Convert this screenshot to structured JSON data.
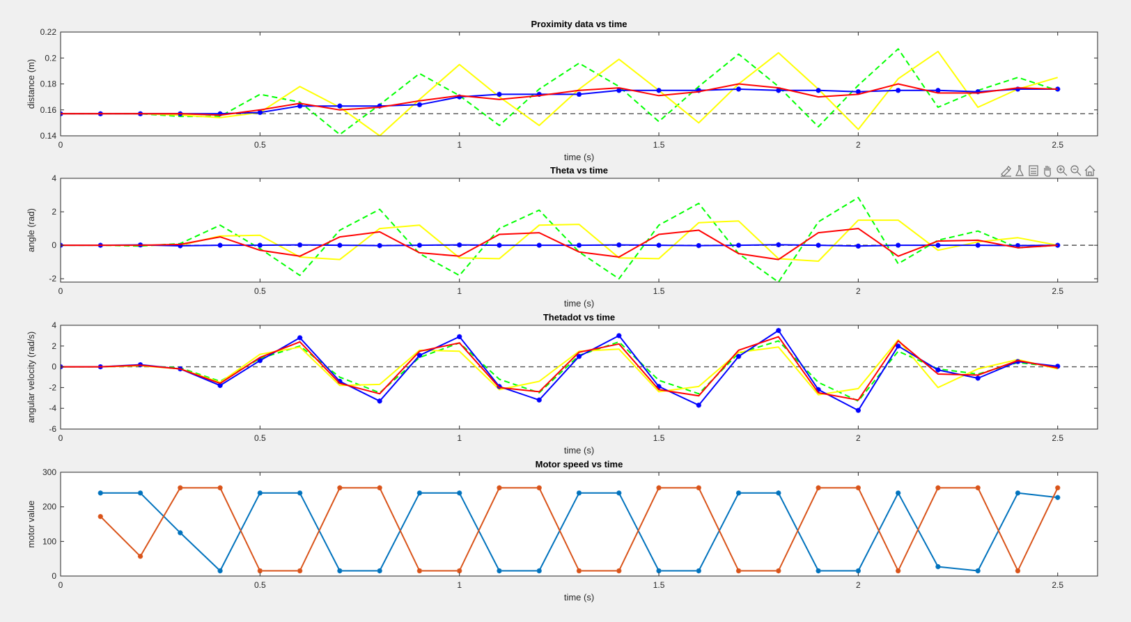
{
  "window": {
    "toolbar_icons": [
      "brush-icon",
      "flask-icon",
      "legend-icon",
      "pan-hand-icon",
      "zoom-in-icon",
      "zoom-out-icon",
      "home-icon"
    ]
  },
  "chart_data": [
    {
      "type": "line",
      "title": "Proximity data vs time",
      "xlabel": "time (s)",
      "ylabel": "distance (m)",
      "xlim": [
        0,
        2.6
      ],
      "ylim": [
        0.14,
        0.22
      ],
      "xticks": [
        0,
        0.5,
        1,
        1.5,
        2,
        2.5
      ],
      "xtick_labels": [
        "0",
        "0.5",
        "1",
        "1.5",
        "2",
        "2.5"
      ],
      "yticks": [
        0.14,
        0.16,
        0.18,
        0.2,
        0.22
      ],
      "ytick_labels": [
        "0.14",
        "0.16",
        "0.18",
        "0.2",
        "0.22"
      ],
      "reference_line": 0.157,
      "series": [
        {
          "color": "#00ff00",
          "dash": true,
          "marker": "",
          "x": [
            0,
            0.1,
            0.2,
            0.3,
            0.4,
            0.5,
            0.6,
            0.7,
            0.8,
            0.9,
            1.0,
            1.1,
            1.2,
            1.3,
            1.4,
            1.5,
            1.6,
            1.7,
            1.8,
            1.9,
            2.0,
            2.1,
            2.2,
            2.3,
            2.4,
            2.5
          ],
          "y": [
            0.157,
            0.157,
            0.157,
            0.155,
            0.155,
            0.172,
            0.166,
            0.141,
            0.164,
            0.188,
            0.171,
            0.148,
            0.176,
            0.196,
            0.178,
            0.151,
            0.178,
            0.203,
            0.178,
            0.147,
            0.179,
            0.207,
            0.162,
            0.175,
            0.185,
            0.175
          ]
        },
        {
          "color": "#ffff00",
          "dash": false,
          "marker": "",
          "x": [
            0,
            0.1,
            0.2,
            0.3,
            0.4,
            0.5,
            0.6,
            0.7,
            0.8,
            0.9,
            1.0,
            1.1,
            1.2,
            1.3,
            1.4,
            1.5,
            1.6,
            1.7,
            1.8,
            1.9,
            2.0,
            2.1,
            2.2,
            2.3,
            2.4,
            2.5
          ],
          "y": [
            0.157,
            0.157,
            0.157,
            0.156,
            0.154,
            0.158,
            0.178,
            0.162,
            0.14,
            0.168,
            0.195,
            0.17,
            0.148,
            0.176,
            0.199,
            0.175,
            0.15,
            0.18,
            0.204,
            0.176,
            0.145,
            0.184,
            0.205,
            0.162,
            0.176,
            0.185
          ]
        },
        {
          "color": "#0000ff",
          "dash": false,
          "marker": "*",
          "x": [
            0,
            0.1,
            0.2,
            0.3,
            0.4,
            0.5,
            0.6,
            0.7,
            0.8,
            0.9,
            1.0,
            1.1,
            1.2,
            1.3,
            1.4,
            1.5,
            1.6,
            1.7,
            1.8,
            1.9,
            2.0,
            2.1,
            2.2,
            2.3,
            2.4,
            2.5
          ],
          "y": [
            0.157,
            0.157,
            0.157,
            0.157,
            0.157,
            0.158,
            0.163,
            0.163,
            0.163,
            0.164,
            0.17,
            0.172,
            0.172,
            0.172,
            0.175,
            0.175,
            0.175,
            0.176,
            0.175,
            0.175,
            0.174,
            0.175,
            0.175,
            0.174,
            0.176,
            0.176
          ]
        },
        {
          "color": "#ff0000",
          "dash": false,
          "marker": "",
          "x": [
            0,
            0.1,
            0.2,
            0.3,
            0.4,
            0.5,
            0.6,
            0.7,
            0.8,
            0.9,
            1.0,
            1.1,
            1.2,
            1.3,
            1.4,
            1.5,
            1.6,
            1.7,
            1.8,
            1.9,
            2.0,
            2.1,
            2.2,
            2.3,
            2.4,
            2.5
          ],
          "y": [
            0.157,
            0.157,
            0.157,
            0.157,
            0.156,
            0.16,
            0.165,
            0.16,
            0.162,
            0.167,
            0.171,
            0.168,
            0.171,
            0.175,
            0.177,
            0.171,
            0.174,
            0.18,
            0.177,
            0.17,
            0.172,
            0.18,
            0.173,
            0.173,
            0.177,
            0.176
          ]
        }
      ]
    },
    {
      "type": "line",
      "title": "Theta vs time",
      "xlabel": "time (s)",
      "ylabel": "angle (rad)",
      "xlim": [
        0,
        2.6
      ],
      "ylim": [
        -2.2,
        4
      ],
      "xticks": [
        0,
        0.5,
        1,
        1.5,
        2,
        2.5
      ],
      "xtick_labels": [
        "0",
        "0.5",
        "1",
        "1.5",
        "2",
        "2.5"
      ],
      "yticks": [
        -2,
        0,
        2,
        4
      ],
      "ytick_labels": [
        "-2",
        "0",
        "2",
        "4"
      ],
      "reference_line": 0,
      "series": [
        {
          "color": "#00ff00",
          "dash": true,
          "marker": "",
          "x": [
            0,
            0.1,
            0.2,
            0.3,
            0.4,
            0.5,
            0.6,
            0.7,
            0.8,
            0.9,
            1.0,
            1.1,
            1.2,
            1.3,
            1.4,
            1.5,
            1.6,
            1.7,
            1.8,
            1.9,
            2.0,
            2.1,
            2.2,
            2.3,
            2.4,
            2.5
          ],
          "y": [
            0,
            0,
            -0.05,
            0.1,
            1.2,
            -0.2,
            -1.8,
            0.9,
            2.15,
            -0.5,
            -1.8,
            1.0,
            2.1,
            -0.4,
            -2.0,
            1.2,
            2.5,
            -0.5,
            -2.2,
            1.4,
            2.85,
            -1.1,
            0.3,
            0.85,
            -0.15,
            0
          ]
        },
        {
          "color": "#ffff00",
          "dash": false,
          "marker": "",
          "x": [
            0,
            0.1,
            0.2,
            0.3,
            0.4,
            0.5,
            0.6,
            0.7,
            0.8,
            0.9,
            1.0,
            1.1,
            1.2,
            1.3,
            1.4,
            1.5,
            1.6,
            1.7,
            1.8,
            1.9,
            2.0,
            2.1,
            2.2,
            2.3,
            2.4,
            2.5
          ],
          "y": [
            0,
            0,
            0,
            0,
            0.55,
            0.6,
            -0.7,
            -0.85,
            1.0,
            1.2,
            -0.75,
            -0.8,
            1.2,
            1.25,
            -0.75,
            -0.8,
            1.35,
            1.45,
            -0.8,
            -0.95,
            1.5,
            1.5,
            -0.3,
            0.2,
            0.45,
            0
          ]
        },
        {
          "color": "#0000ff",
          "dash": false,
          "marker": "*",
          "x": [
            0,
            0.1,
            0.2,
            0.3,
            0.4,
            0.5,
            0.6,
            0.7,
            0.8,
            0.9,
            1.0,
            1.1,
            1.2,
            1.3,
            1.4,
            1.5,
            1.6,
            1.7,
            1.8,
            1.9,
            2.0,
            2.1,
            2.2,
            2.3,
            2.4,
            2.5
          ],
          "y": [
            0,
            0,
            0.02,
            -0.03,
            0,
            0,
            0.02,
            0,
            -0.02,
            0,
            0.02,
            0,
            0,
            0,
            0.02,
            0,
            -0.02,
            0,
            0.03,
            0,
            -0.05,
            0,
            0,
            0,
            -0.02,
            0
          ]
        },
        {
          "color": "#ff0000",
          "dash": false,
          "marker": "",
          "x": [
            0,
            0.1,
            0.2,
            0.3,
            0.4,
            0.5,
            0.6,
            0.7,
            0.8,
            0.9,
            1.0,
            1.1,
            1.2,
            1.3,
            1.4,
            1.5,
            1.6,
            1.7,
            1.8,
            1.9,
            2.0,
            2.1,
            2.2,
            2.3,
            2.4,
            2.5
          ],
          "y": [
            0,
            0,
            0,
            0.05,
            0.5,
            -0.3,
            -0.65,
            0.5,
            0.8,
            -0.45,
            -0.65,
            0.65,
            0.75,
            -0.4,
            -0.7,
            0.65,
            0.9,
            -0.5,
            -0.85,
            0.75,
            1.0,
            -0.65,
            0.25,
            0.3,
            -0.15,
            0
          ]
        }
      ]
    },
    {
      "type": "line",
      "title": "Thetadot vs time",
      "xlabel": "time (s)",
      "ylabel": "angular velocity (rad/s)",
      "xlim": [
        0,
        2.6
      ],
      "ylim": [
        -6,
        4
      ],
      "xticks": [
        0,
        0.5,
        1,
        1.5,
        2,
        2.5
      ],
      "xtick_labels": [
        "0",
        "0.5",
        "1",
        "1.5",
        "2",
        "2.5"
      ],
      "yticks": [
        -6,
        -4,
        -2,
        0,
        2,
        4
      ],
      "ytick_labels": [
        "-6",
        "-4",
        "-2",
        "0",
        "2",
        "4"
      ],
      "reference_line": 0,
      "series": [
        {
          "color": "#00ff00",
          "dash": true,
          "marker": "",
          "x": [
            0,
            0.1,
            0.2,
            0.3,
            0.4,
            0.5,
            0.6,
            0.7,
            0.8,
            0.9,
            1.0,
            1.1,
            1.2,
            1.3,
            1.4,
            1.5,
            1.6,
            1.7,
            1.8,
            1.9,
            2.0,
            2.1,
            2.2,
            2.3,
            2.4,
            2.5
          ],
          "y": [
            0,
            0,
            0.1,
            -0.1,
            -1.4,
            0.8,
            2.0,
            -1.0,
            -2.5,
            0.9,
            2.3,
            -1.2,
            -2.5,
            1.1,
            2.4,
            -1.3,
            -2.6,
            1.3,
            2.5,
            -1.5,
            -3.3,
            1.5,
            -0.2,
            -0.7,
            0.4,
            0
          ]
        },
        {
          "color": "#ffff00",
          "dash": false,
          "marker": "",
          "x": [
            0,
            0.1,
            0.2,
            0.3,
            0.4,
            0.5,
            0.6,
            0.7,
            0.8,
            0.9,
            1.0,
            1.1,
            1.2,
            1.3,
            1.4,
            1.5,
            1.6,
            1.7,
            1.8,
            1.9,
            2.0,
            2.1,
            2.2,
            2.3,
            2.4,
            2.5
          ],
          "y": [
            0,
            0,
            0.1,
            -0.2,
            -1.5,
            1.2,
            1.9,
            -1.8,
            -1.7,
            1.6,
            1.5,
            -2.2,
            -1.4,
            1.5,
            1.7,
            -2.4,
            -1.9,
            1.4,
            1.9,
            -2.7,
            -2.1,
            2.6,
            -2.0,
            -0.2,
            0.7,
            -0.2
          ]
        },
        {
          "color": "#0000ff",
          "dash": false,
          "marker": "*",
          "x": [
            0,
            0.1,
            0.2,
            0.3,
            0.4,
            0.5,
            0.6,
            0.7,
            0.8,
            0.9,
            1.0,
            1.1,
            1.2,
            1.3,
            1.4,
            1.5,
            1.6,
            1.7,
            1.8,
            1.9,
            2.0,
            2.1,
            2.2,
            2.3,
            2.4,
            2.5
          ],
          "y": [
            0,
            0,
            0.2,
            -0.2,
            -1.8,
            0.6,
            2.8,
            -1.4,
            -3.3,
            1.1,
            2.9,
            -1.9,
            -3.2,
            1.0,
            3.0,
            -1.9,
            -3.7,
            1.0,
            3.5,
            -2.2,
            -4.2,
            2.0,
            -0.3,
            -1.1,
            0.5,
            0.05
          ]
        },
        {
          "color": "#ff0000",
          "dash": false,
          "marker": "",
          "x": [
            0,
            0.1,
            0.2,
            0.3,
            0.4,
            0.5,
            0.6,
            0.7,
            0.8,
            0.9,
            1.0,
            1.1,
            1.2,
            1.3,
            1.4,
            1.5,
            1.6,
            1.7,
            1.8,
            1.9,
            2.0,
            2.1,
            2.2,
            2.3,
            2.4,
            2.5
          ],
          "y": [
            0,
            0,
            0.15,
            -0.2,
            -1.6,
            0.9,
            2.4,
            -1.6,
            -2.6,
            1.5,
            2.3,
            -2.0,
            -2.4,
            1.4,
            2.2,
            -2.2,
            -2.8,
            1.6,
            2.9,
            -2.5,
            -3.2,
            2.5,
            -0.7,
            -0.8,
            0.6,
            -0.1
          ]
        }
      ]
    },
    {
      "type": "line",
      "title": "Motor speed vs time",
      "xlabel": "time (s)",
      "ylabel": "motor value",
      "xlim": [
        0,
        2.6
      ],
      "ylim": [
        0,
        300
      ],
      "xticks": [
        0,
        0.5,
        1,
        1.5,
        2,
        2.5
      ],
      "xtick_labels": [
        "0",
        "0.5",
        "1",
        "1.5",
        "2",
        "2.5"
      ],
      "yticks": [
        0,
        100,
        200,
        300
      ],
      "ytick_labels": [
        "0",
        "100",
        "200",
        "300"
      ],
      "reference_line": null,
      "series": [
        {
          "color": "#0072bd",
          "dash": false,
          "marker": "*",
          "x": [
            0.1,
            0.2,
            0.3,
            0.4,
            0.5,
            0.6,
            0.7,
            0.8,
            0.9,
            1.0,
            1.1,
            1.2,
            1.3,
            1.4,
            1.5,
            1.6,
            1.7,
            1.8,
            1.9,
            2.0,
            2.1,
            2.2,
            2.3,
            2.4,
            2.5
          ],
          "y": [
            240,
            240,
            125,
            15,
            240,
            240,
            15,
            15,
            240,
            240,
            15,
            15,
            240,
            240,
            15,
            15,
            240,
            240,
            15,
            15,
            240,
            27,
            15,
            240,
            227
          ]
        },
        {
          "color": "#d95319",
          "dash": false,
          "marker": "*",
          "x": [
            0.1,
            0.2,
            0.3,
            0.4,
            0.5,
            0.6,
            0.7,
            0.8,
            0.9,
            1.0,
            1.1,
            1.2,
            1.3,
            1.4,
            1.5,
            1.6,
            1.7,
            1.8,
            1.9,
            2.0,
            2.1,
            2.2,
            2.3,
            2.4,
            2.5
          ],
          "y": [
            172,
            57,
            255,
            255,
            15,
            15,
            255,
            255,
            15,
            15,
            255,
            255,
            15,
            15,
            255,
            255,
            15,
            15,
            255,
            255,
            15,
            255,
            255,
            15,
            255
          ]
        }
      ]
    }
  ]
}
